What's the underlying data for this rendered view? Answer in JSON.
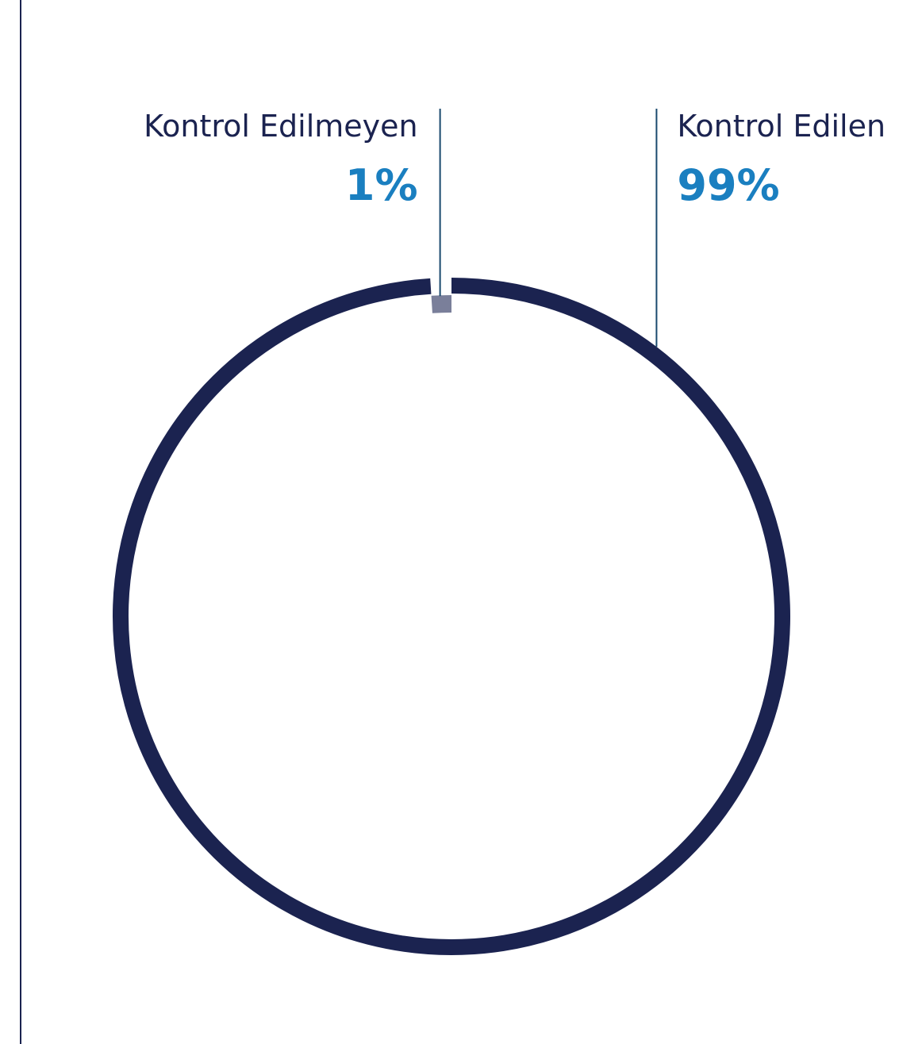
{
  "chart_data": {
    "type": "donut",
    "categories": [
      "Kontrol Edilmeyen",
      "Kontrol Edilen"
    ],
    "values": [
      1,
      99
    ],
    "value_labels": [
      "1%",
      "99%"
    ],
    "colors": [
      "#7a7f9a",
      "#1b2350"
    ]
  }
}
